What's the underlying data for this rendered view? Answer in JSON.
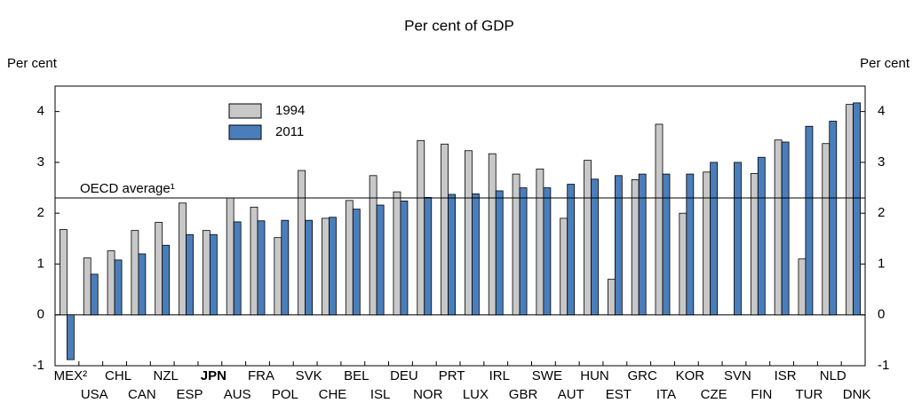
{
  "chart_data": {
    "type": "bar",
    "title": "Per cent of GDP",
    "y_label": "Per cent",
    "y2_label": "Per cent",
    "categories": [
      "MEX²",
      "USA",
      "CHL",
      "CAN",
      "NZL",
      "ESP",
      "JPN",
      "AUS",
      "FRA",
      "POL",
      "SVK",
      "CHE",
      "BEL",
      "ISL",
      "DEU",
      "NOR",
      "PRT",
      "LUX",
      "IRL",
      "GBR",
      "SWE",
      "AUT",
      "HUN",
      "EST",
      "GRC",
      "ITA",
      "KOR",
      "CZE",
      "SVN",
      "FIN",
      "ISR",
      "TUR",
      "NLD",
      "DNK"
    ],
    "highlight": "JPN",
    "series": [
      {
        "name": "1994",
        "color": "#c8c8c8",
        "values": [
          1.68,
          1.12,
          1.26,
          1.66,
          1.82,
          2.2,
          1.66,
          2.3,
          2.12,
          1.52,
          2.84,
          1.9,
          2.25,
          2.74,
          2.42,
          3.43,
          3.36,
          3.23,
          3.17,
          2.77,
          2.87,
          1.9,
          3.04,
          0.7,
          2.66,
          3.75,
          2.0,
          2.81,
          null,
          2.78,
          3.44,
          1.1,
          3.37,
          4.14
        ]
      },
      {
        "name": "2011",
        "color": "#4a7ebb",
        "values": [
          -0.88,
          0.8,
          1.08,
          1.2,
          1.37,
          1.58,
          1.58,
          1.83,
          1.85,
          1.86,
          1.86,
          1.92,
          2.08,
          2.16,
          2.24,
          2.31,
          2.37,
          2.38,
          2.44,
          2.5,
          2.5,
          2.57,
          2.67,
          2.74,
          2.77,
          2.77,
          2.77,
          3.0,
          3.0,
          3.1,
          3.4,
          3.71,
          3.81,
          4.17
        ]
      }
    ],
    "annotation": {
      "text": "OECD average¹",
      "value": 2.3
    },
    "ylim": [
      -1,
      4.5
    ],
    "yticks": [
      -1,
      0,
      1,
      2,
      3,
      4
    ],
    "grid": false
  }
}
